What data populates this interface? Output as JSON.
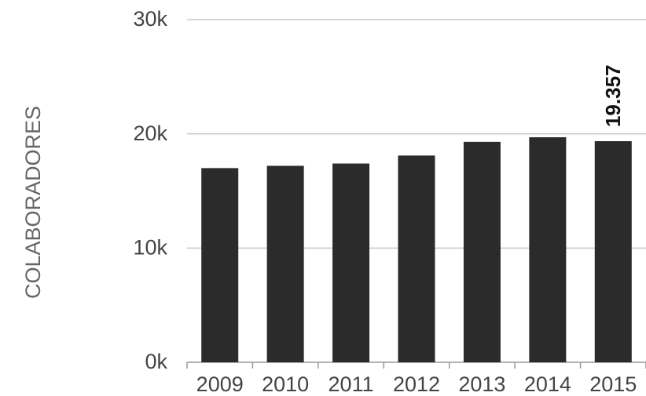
{
  "chart_data": {
    "type": "bar",
    "categories": [
      "2009",
      "2010",
      "2011",
      "2012",
      "2013",
      "2014",
      "2015"
    ],
    "values": [
      17000,
      17200,
      17400,
      18100,
      19300,
      19700,
      19357
    ],
    "ylabel": "COLABORADORES",
    "xlabel": "",
    "title": "",
    "ylim": [
      0,
      30000
    ],
    "yticks": [
      {
        "value": 0,
        "label": "0k"
      },
      {
        "value": 10000,
        "label": "10k"
      },
      {
        "value": 20000,
        "label": "20k"
      },
      {
        "value": 30000,
        "label": "30k"
      }
    ],
    "data_labels": [
      {
        "category": "2015",
        "text": "19.357"
      }
    ],
    "grid": true,
    "bar_color": "#2b2b2b",
    "grid_color": "#c8c8c8"
  }
}
